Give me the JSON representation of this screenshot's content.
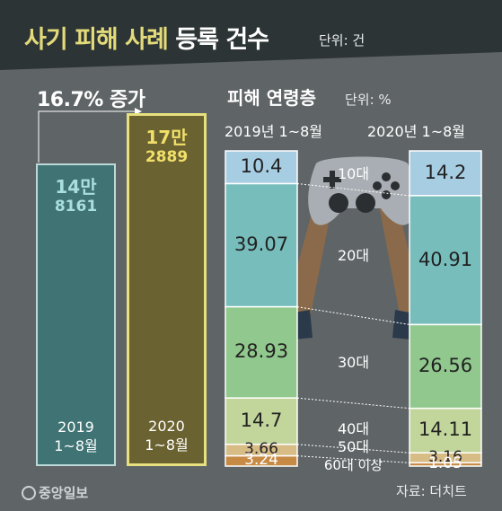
{
  "header": {
    "title_part1": "사기 피해 사례",
    "title_part2": "등록 건수",
    "unit": "단위: 건"
  },
  "growth_label": "16.7% 증가",
  "age_section": {
    "title": "피해 연령층",
    "unit": "단위: %",
    "col_2019": "2019년 1~8월",
    "col_2020": "2020년 1~8월",
    "age_labels": [
      "10대",
      "20대",
      "30대",
      "40대",
      "50대",
      "60대 이상"
    ]
  },
  "footer": {
    "logo": "중앙일보",
    "source": "자료: 더치트"
  },
  "colors": {
    "background": "#5f6467",
    "title_band": "#2d3435",
    "bar_2019": "#3f7374",
    "bar_2019_text": "#a9dfde",
    "bar_2020": "#6b6231",
    "bar_2020_text": "#f0e06a",
    "bar_2020_border": "#e8e07f",
    "teen": "#a7cde3",
    "twenties": "#77bdbc",
    "thirties": "#91c88d",
    "forties": "#c2d69c",
    "fifties": "#d8bc86",
    "sixties": "#c68a45"
  },
  "chart_data": [
    {
      "type": "bar",
      "title": "사기 피해 사례 등록 건수",
      "unit": "건",
      "categories": [
        "2019\n1~8월",
        "2020\n1~8월"
      ],
      "category_years": [
        "2019",
        "2020"
      ],
      "category_period": [
        "1~8월",
        "1~8월"
      ],
      "values": [
        148161,
        172889
      ],
      "value_labels_main": [
        "14만",
        "17만"
      ],
      "value_labels_sub": [
        "8161",
        "2889"
      ],
      "annotation": "16.7% 증가"
    },
    {
      "type": "bar",
      "stacked": true,
      "title": "피해 연령층",
      "unit": "%",
      "categories": [
        "2019년 1~8월",
        "2020년 1~8월"
      ],
      "series": [
        {
          "name": "10대",
          "values": [
            10.4,
            14.2
          ],
          "labels": [
            "10.4",
            "14.2"
          ]
        },
        {
          "name": "20대",
          "values": [
            39.07,
            40.91
          ],
          "labels": [
            "39.07",
            "40.91"
          ]
        },
        {
          "name": "30대",
          "values": [
            28.93,
            26.56
          ],
          "labels": [
            "28.93",
            "26.56"
          ]
        },
        {
          "name": "40대",
          "values": [
            14.7,
            14.11
          ],
          "labels": [
            "14.7",
            "14.11"
          ]
        },
        {
          "name": "50대",
          "values": [
            3.66,
            3.16
          ],
          "labels": [
            "3.66",
            "3.16"
          ]
        },
        {
          "name": "60대 이상",
          "values": [
            3.24,
            1.05
          ],
          "labels": [
            "3.24",
            "1.05"
          ]
        }
      ]
    }
  ]
}
